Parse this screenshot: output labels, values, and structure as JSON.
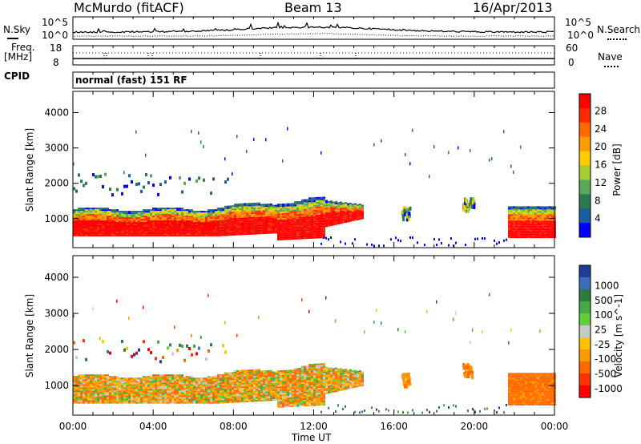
{
  "header": {
    "station": "McMurdo (fitACF)",
    "beam": "Beam 13",
    "date": "16/Apr/2013"
  },
  "noise_panel": {
    "left_label": "N.Sky",
    "right_label": "N.Search",
    "left_ticks": [
      "10^5",
      "10^0"
    ],
    "right_ticks": [
      "10^5",
      "10^0"
    ]
  },
  "freq_panel": {
    "left_label_1": "Freq.",
    "left_label_2": "[MHz]",
    "left_ticks": [
      "18",
      "8"
    ],
    "right_label": "Nave",
    "right_ticks": [
      "60",
      "0"
    ]
  },
  "cpid": {
    "label": "CPID",
    "value": "normal (fast) 151 RF"
  },
  "chart_data": [
    {
      "type": "heatmap",
      "ylabel": "Slant Range [km]",
      "xlabel": "Time UT",
      "y_ticks": [
        "4000",
        "3000",
        "2000",
        "1000"
      ],
      "ylim": [
        180,
        4600
      ],
      "x_ticks": [
        "00:00",
        "04:00",
        "08:00",
        "12:00",
        "16:00",
        "20:00",
        "00:00"
      ],
      "colorbar_label": "Power [dB]",
      "colorbar_ticks": [
        "28",
        "24",
        "20",
        "16",
        "12",
        "8",
        "4"
      ],
      "colorbar_colors": [
        "#ff0000",
        "#ff2a00",
        "#ff6a00",
        "#ff9a00",
        "#ffcc00",
        "#a8cc30",
        "#58a858",
        "#2e7850",
        "#1b5ea0",
        "#0000ff"
      ]
    },
    {
      "type": "heatmap",
      "ylabel": "Slant Range [km]",
      "xlabel": "Time UT",
      "y_ticks": [
        "4000",
        "3000",
        "2000",
        "1000"
      ],
      "ylim": [
        180,
        4600
      ],
      "x_ticks": [
        "00:00",
        "04:00",
        "08:00",
        "12:00",
        "16:00",
        "20:00",
        "00:00"
      ],
      "colorbar_label": "Velocity [m s^-1]",
      "colorbar_ticks": [
        "1000",
        "500",
        "100",
        "25",
        "-25",
        "-100",
        "-500",
        "-1000"
      ],
      "colorbar_colors": [
        "#1f3c9a",
        "#3d6ebc",
        "#2e7a40",
        "#44aa44",
        "#66cc33",
        "#c8c8c8",
        "#ffc200",
        "#ff9900",
        "#ff6a00",
        "#ff3300",
        "#ff0000"
      ]
    }
  ],
  "x_axis": {
    "label": "Time UT",
    "ticks": [
      "00:00",
      "04:00",
      "08:00",
      "12:00",
      "16:00",
      "20:00",
      "00:00"
    ]
  }
}
